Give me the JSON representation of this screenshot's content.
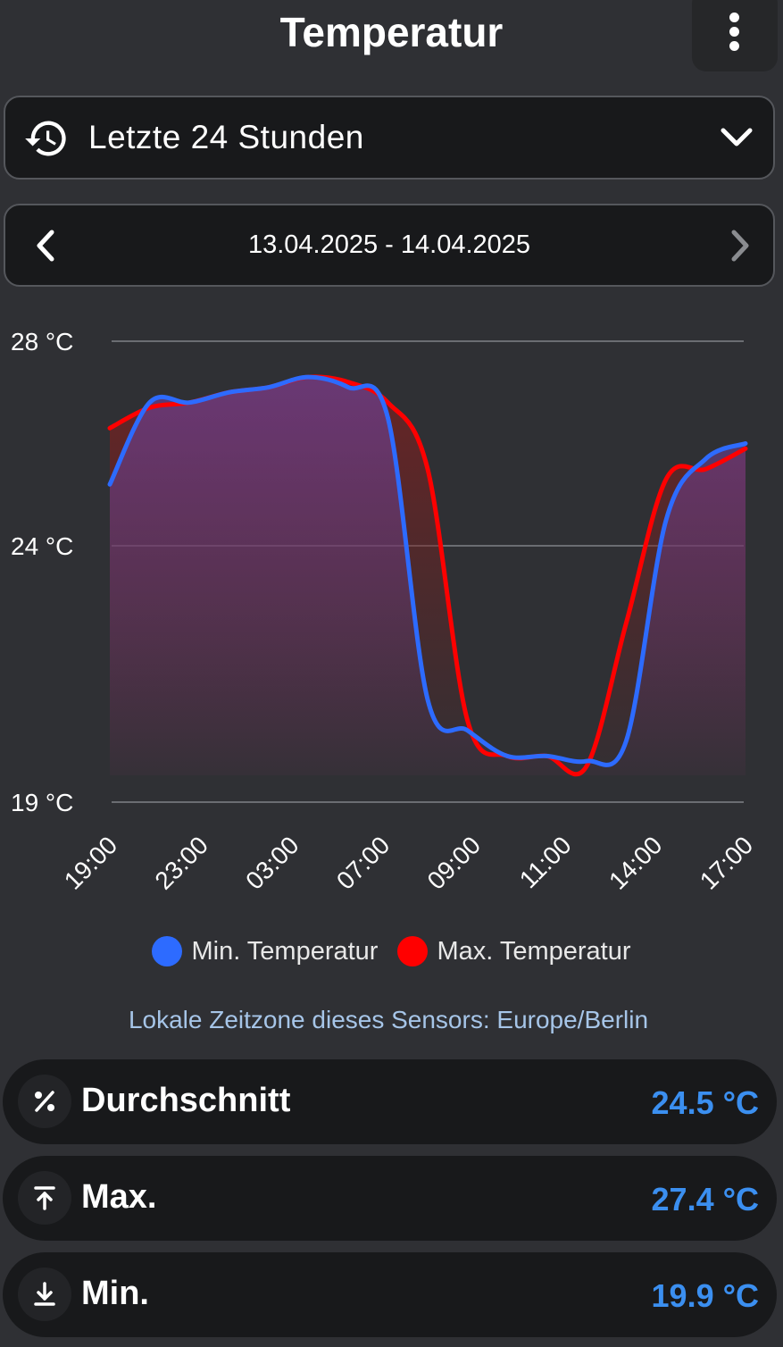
{
  "header": {
    "title": "Temperatur"
  },
  "range": {
    "label": "Letzte 24 Stunden"
  },
  "date_nav": {
    "label": "13.04.2025 - 14.04.2025"
  },
  "chart_data": {
    "type": "line",
    "y_ticks": [
      "28 °C",
      "24 °C",
      "19 °C"
    ],
    "y_tick_values": [
      28,
      24,
      19
    ],
    "x_ticks": [
      "19:00",
      "23:00",
      "03:00",
      "07:00",
      "09:00",
      "11:00",
      "14:00",
      "17:00"
    ],
    "ylim": [
      19,
      28
    ],
    "grid": true,
    "legend_position": "bottom",
    "series": [
      {
        "name": "Min. Temperatur",
        "color": "#2d6bff",
        "values": [
          25.2,
          26.8,
          26.8,
          27.0,
          27.1,
          27.3,
          27.1,
          26.5,
          21.0,
          20.4,
          19.9,
          19.9,
          19.8,
          20.2,
          24.5,
          25.7,
          26.0
        ]
      },
      {
        "name": "Max. Temperatur",
        "color": "#ff0000",
        "values": [
          26.3,
          26.7,
          26.8,
          27.0,
          27.1,
          27.3,
          27.2,
          26.8,
          25.5,
          20.6,
          19.9,
          19.9,
          19.7,
          22.5,
          25.3,
          25.5,
          25.9
        ]
      }
    ],
    "fill_colors": {
      "min": "#6a3f8f",
      "max": "#7a2020"
    }
  },
  "legend": {
    "min": "Min. Temperatur",
    "max": "Max. Temperatur"
  },
  "timezone_note": "Lokale Zeitzone dieses Sensors: Europe/Berlin",
  "stats": {
    "average": {
      "label": "Durchschnitt",
      "value": "24.5 °C"
    },
    "max": {
      "label": "Max.",
      "value": "27.4 °C"
    },
    "min": {
      "label": "Min.",
      "value": "19.9 °C"
    }
  },
  "colors": {
    "accent": "#3b8ff0",
    "background": "#2f3034",
    "card": "#18191b"
  },
  "icons": [
    "more-vert-icon",
    "history-icon",
    "chevron-down-icon",
    "chevron-left-icon",
    "chevron-right-icon",
    "percent-icon",
    "arrow-top-icon",
    "arrow-bottom-icon"
  ]
}
